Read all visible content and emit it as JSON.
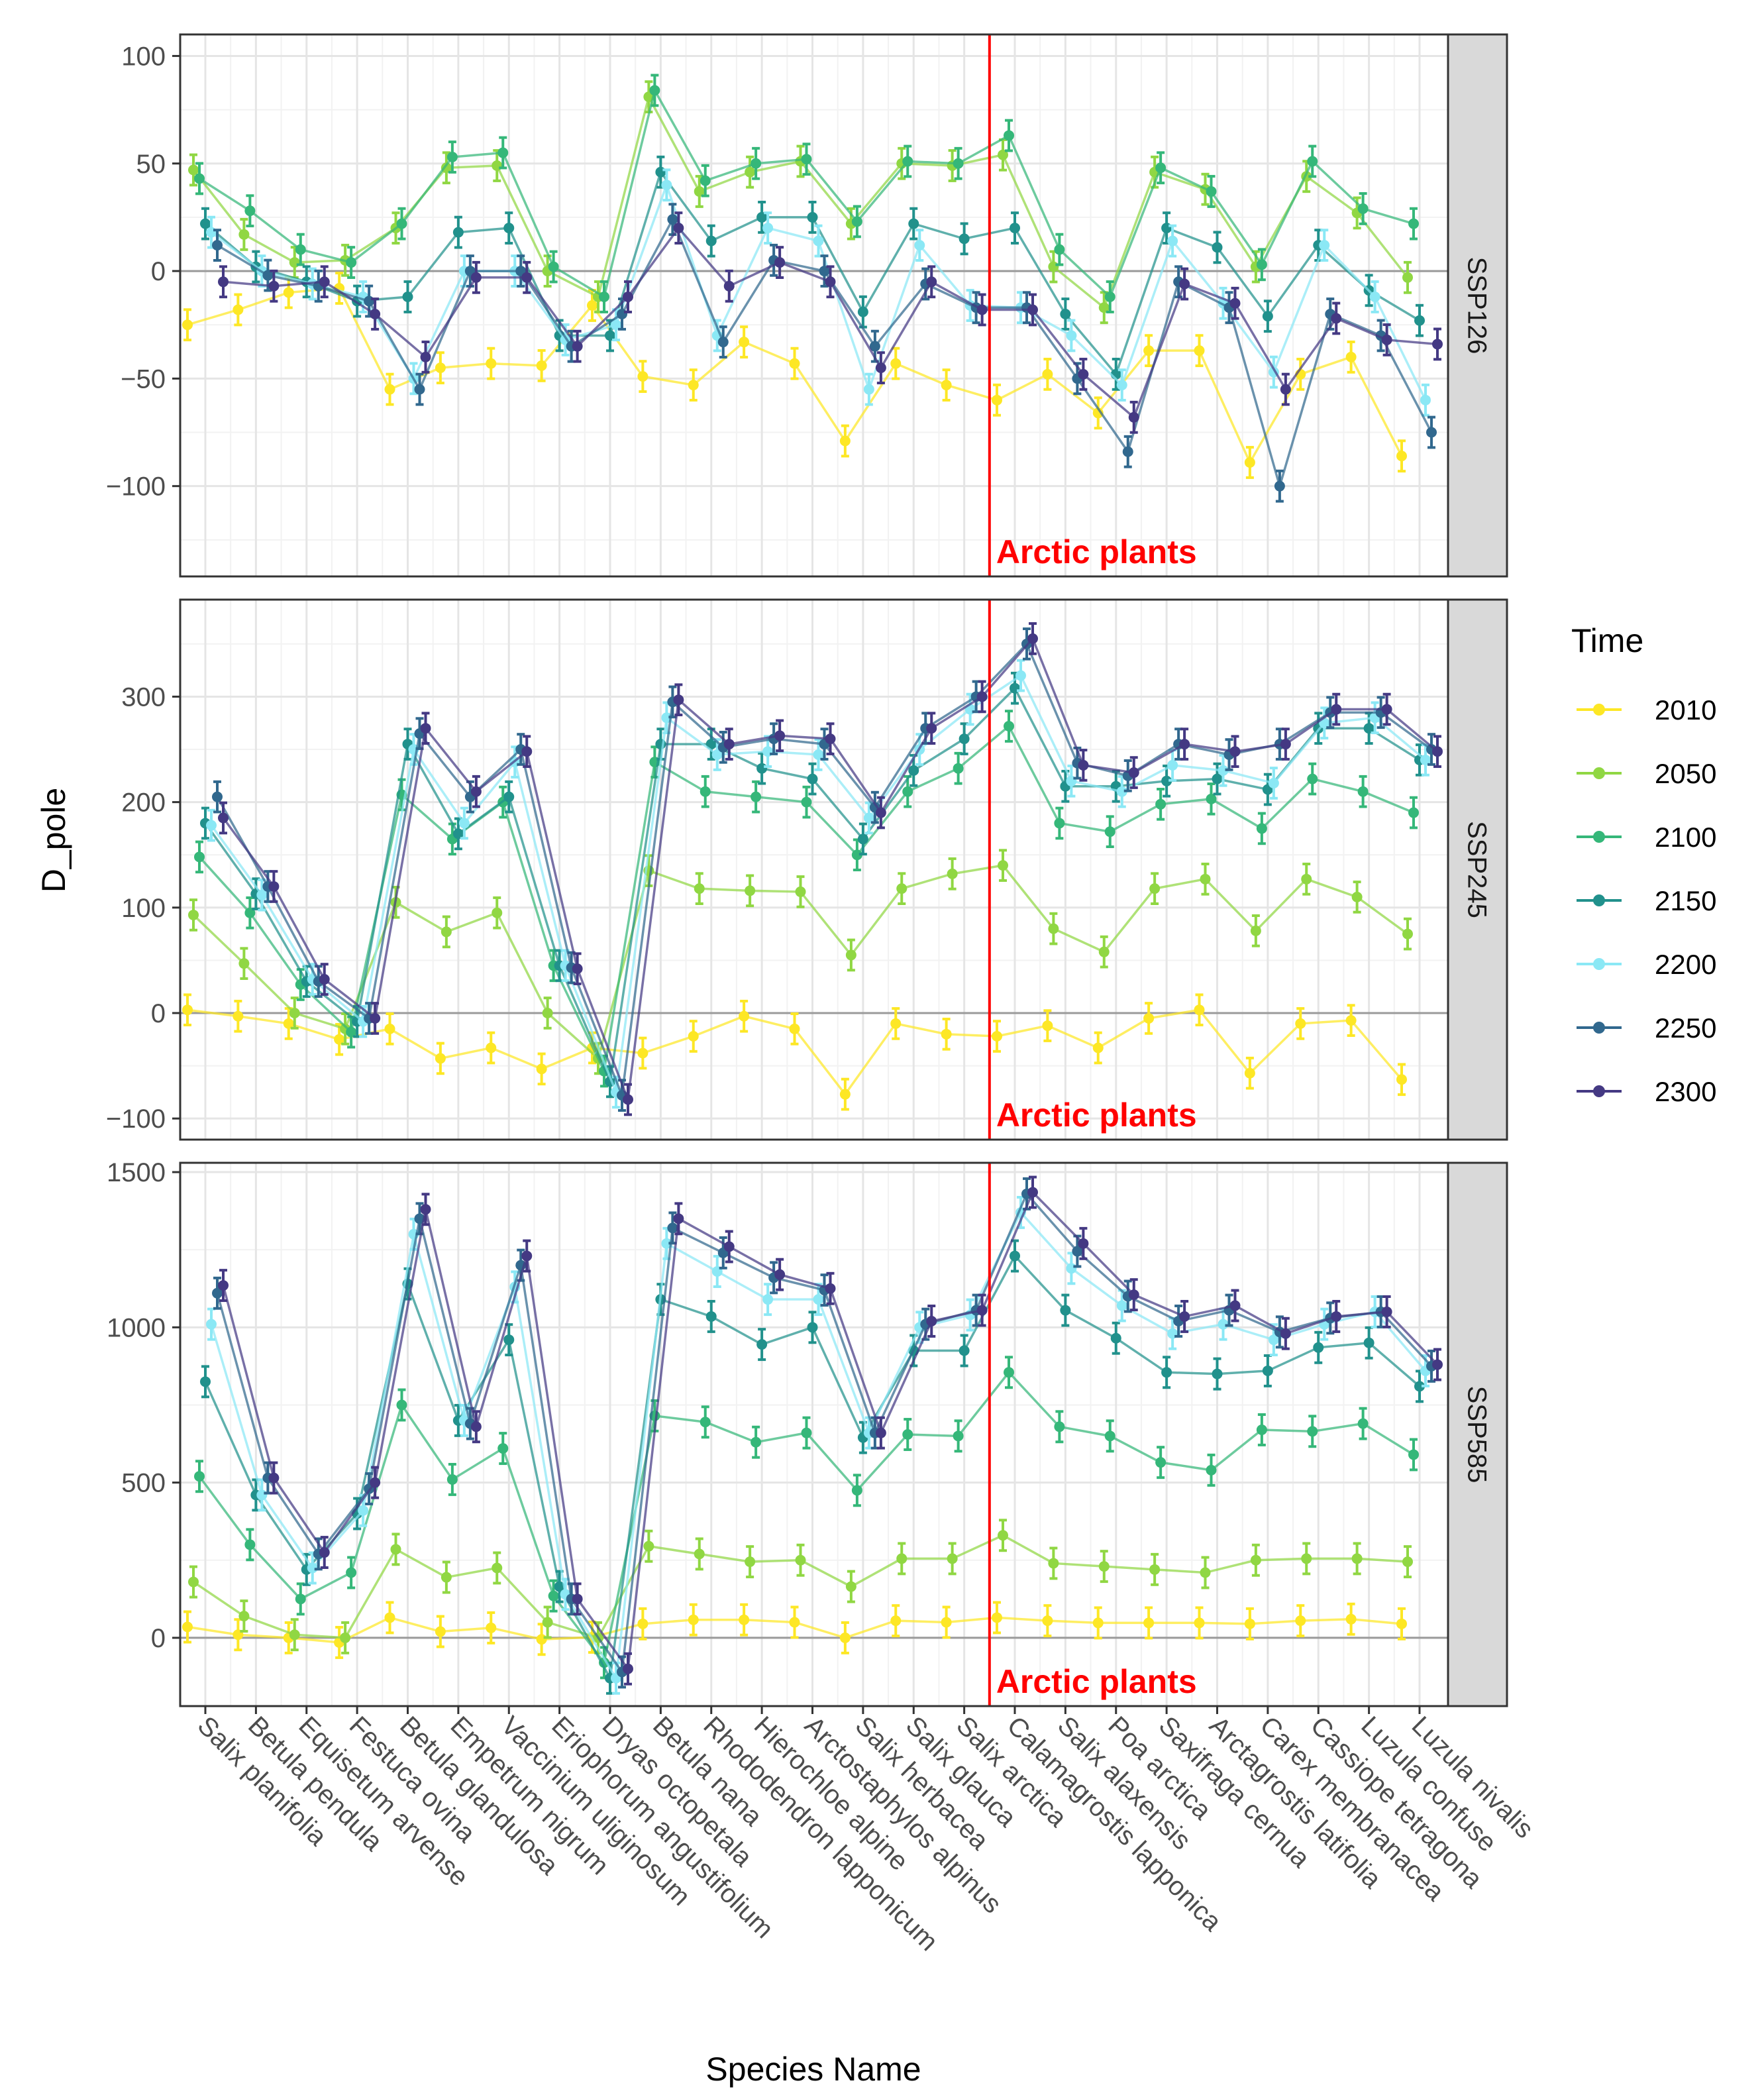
{
  "chart_data": {
    "type": "line",
    "xlabel": "Species Name",
    "ylabel": "D_pole",
    "legend_title": "Time",
    "annotation": "Arctic plants",
    "annotation_color": "#ff0000",
    "divider_after_category": "Salix arctica",
    "legend_position": "right",
    "categories": [
      "Salix planifolia",
      "Betula pendula",
      "Equisetum arvense",
      "Festuca ovina",
      "Betula glandulosa",
      "Empetrum nigrum",
      "Vaccinium uliginosum",
      "Eriophorum angustifolium",
      "Dryas octopetala",
      "Betula nana",
      "Rhododendron lapponicum",
      "Hierochloe alpine",
      "Arctostaphylos alpinus",
      "Salix herbacea",
      "Salix glauca",
      "Salix arctica",
      "Calamagrostis lapponica",
      "Salix alaxensis",
      "Poa arctica",
      "Saxifraga cernua",
      "Arctagrostis latifolia",
      "Carex membranacea",
      "Cassiope tetragona",
      "Luzula confuse",
      "Luzula nivalis"
    ],
    "series_names": [
      "2010",
      "2050",
      "2100",
      "2150",
      "2200",
      "2250",
      "2300"
    ],
    "series_colors": [
      "#fde725",
      "#90d743",
      "#35b779",
      "#21918c",
      "#8be8f5",
      "#31688e",
      "#443983"
    ],
    "panels": [
      {
        "label": "SSP126",
        "ylim": [
          -142,
          110
        ],
        "yticks": [
          -100,
          -50,
          0,
          50,
          100
        ],
        "series": [
          {
            "name": "2010",
            "values": [
              -25,
              -18,
              -10,
              -8,
              -55,
              -45,
              -43,
              -44,
              -16,
              -49,
              -53,
              -33,
              -43,
              -79,
              -43,
              -53,
              -60,
              -48,
              -66,
              -37,
              -37,
              -89,
              -48,
              -40,
              -86
            ]
          },
          {
            "name": "2050",
            "values": [
              47,
              17,
              4,
              5,
              20,
              48,
              49,
              0,
              -12,
              81,
              37,
              46,
              51,
              22,
              50,
              49,
              54,
              2,
              -17,
              46,
              38,
              2,
              44,
              27,
              -3
            ]
          },
          {
            "name": "2100",
            "values": [
              43,
              28,
              10,
              4,
              22,
              53,
              55,
              2,
              -12,
              84,
              42,
              50,
              52,
              23,
              51,
              50,
              63,
              10,
              -12,
              48,
              37,
              3,
              51,
              29,
              22
            ]
          },
          {
            "name": "2150",
            "values": [
              22,
              2,
              -5,
              -14,
              -12,
              18,
              20,
              -30,
              -30,
              46,
              14,
              25,
              25,
              -19,
              22,
              15,
              20,
              -20,
              -48,
              20,
              11,
              -21,
              12,
              -9,
              -23
            ]
          },
          {
            "name": "2200",
            "values": [
              18,
              0,
              -6,
              -12,
              -50,
              0,
              0,
              -32,
              -25,
              40,
              -30,
              20,
              14,
              -55,
              12,
              -16,
              -17,
              -30,
              -53,
              14,
              -15,
              -47,
              12,
              -12,
              -60
            ]
          },
          {
            "name": "2250",
            "values": [
              12,
              -2,
              -7,
              -14,
              -55,
              0,
              0,
              -35,
              -20,
              24,
              -33,
              5,
              0,
              -35,
              -6,
              -17,
              -17,
              -50,
              -84,
              -5,
              -17,
              -100,
              -20,
              -30,
              -75
            ]
          },
          {
            "name": "2300",
            "values": [
              -5,
              -7,
              -5,
              -20,
              -40,
              -3,
              -3,
              -35,
              -12,
              20,
              -7,
              4,
              -5,
              -45,
              -5,
              -18,
              -18,
              -48,
              -68,
              -6,
              -15,
              -55,
              -22,
              -32,
              -34
            ]
          }
        ]
      },
      {
        "label": "SSP245",
        "ylim": [
          -120,
          392
        ],
        "yticks": [
          -100,
          0,
          100,
          200,
          300
        ],
        "series": [
          {
            "name": "2010",
            "values": [
              3,
              -3,
              -10,
              -25,
              -15,
              -43,
              -33,
              -53,
              -33,
              -38,
              -22,
              -3,
              -15,
              -77,
              -10,
              -20,
              -22,
              -12,
              -33,
              -5,
              3,
              -57,
              -10,
              -7,
              -63
            ]
          },
          {
            "name": "2050",
            "values": [
              93,
              47,
              0,
              -15,
              105,
              77,
              95,
              0,
              -43,
              135,
              118,
              116,
              115,
              55,
              118,
              132,
              140,
              80,
              58,
              118,
              127,
              78,
              127,
              110,
              75
            ]
          },
          {
            "name": "2100",
            "values": [
              148,
              95,
              27,
              -18,
              207,
              165,
              200,
              45,
              -55,
              238,
              210,
              205,
              200,
              150,
              210,
              232,
              272,
              180,
              172,
              198,
              203,
              175,
              222,
              210,
              190
            ]
          },
          {
            "name": "2150",
            "values": [
              180,
              113,
              30,
              -8,
              255,
              170,
              205,
              45,
              -65,
              255,
              255,
              232,
              222,
              165,
              230,
              260,
              308,
              215,
              215,
              220,
              222,
              212,
              270,
              270,
              240
            ]
          },
          {
            "name": "2200",
            "values": [
              178,
              112,
              32,
              -8,
              250,
              180,
              238,
              45,
              -75,
              280,
              245,
              248,
              245,
              185,
              250,
              288,
              320,
              220,
              210,
              235,
              230,
              218,
              275,
              280,
              240
            ]
          },
          {
            "name": "2250",
            "values": [
              205,
              120,
              30,
              -5,
              265,
              205,
              250,
              43,
              -78,
              295,
              252,
              260,
              255,
              195,
              270,
              300,
              350,
              237,
              225,
              255,
              245,
              255,
              285,
              285,
              250
            ]
          },
          {
            "name": "2300",
            "values": [
              185,
              120,
              32,
              -5,
              270,
              210,
              248,
              42,
              -82,
              297,
              255,
              263,
              260,
              190,
              270,
              300,
              355,
              235,
              228,
              255,
              248,
              255,
              288,
              288,
              248
            ]
          }
        ]
      },
      {
        "label": "SSP585",
        "ylim": [
          -220,
          1530
        ],
        "yticks": [
          0,
          500,
          1000,
          1500
        ],
        "series": [
          {
            "name": "2010",
            "values": [
              35,
              10,
              0,
              -15,
              65,
              20,
              32,
              -5,
              2,
              45,
              58,
              58,
              50,
              0,
              55,
              50,
              65,
              55,
              48,
              48,
              48,
              45,
              55,
              60,
              45
            ]
          },
          {
            "name": "2050",
            "values": [
              180,
              70,
              10,
              0,
              285,
              195,
              225,
              50,
              0,
              295,
              270,
              245,
              250,
              165,
              255,
              255,
              330,
              240,
              230,
              220,
              210,
              250,
              255,
              255,
              245
            ]
          },
          {
            "name": "2100",
            "values": [
              520,
              300,
              125,
              210,
              750,
              510,
              610,
              135,
              -80,
              715,
              695,
              630,
              660,
              475,
              655,
              650,
              855,
              680,
              650,
              565,
              540,
              670,
              665,
              690,
              590
            ]
          },
          {
            "name": "2150",
            "values": [
              825,
              460,
              220,
              400,
              1140,
              700,
              960,
              165,
              -130,
              1090,
              1035,
              945,
              1000,
              645,
              925,
              925,
              1230,
              1055,
              965,
              855,
              850,
              860,
              935,
              950,
              810
            ]
          },
          {
            "name": "2200",
            "values": [
              1010,
              460,
              225,
              410,
              1300,
              700,
              1130,
              140,
              -130,
              1270,
              1180,
              1090,
              1090,
              660,
              1000,
              1040,
              1370,
              1190,
              1070,
              980,
              1010,
              960,
              1010,
              1050,
              860
            ]
          },
          {
            "name": "2250",
            "values": [
              1110,
              515,
              270,
              480,
              1350,
              690,
              1200,
              125,
              -110,
              1320,
              1240,
              1160,
              1120,
              660,
              1010,
              1055,
              1430,
              1245,
              1100,
              1020,
              1055,
              985,
              1030,
              1050,
              875
            ]
          },
          {
            "name": "2300",
            "values": [
              1135,
              515,
              275,
              500,
              1380,
              680,
              1230,
              125,
              -100,
              1350,
              1260,
              1170,
              1125,
              660,
              1020,
              1055,
              1435,
              1270,
              1105,
              1035,
              1070,
              980,
              1035,
              1050,
              880
            ]
          }
        ]
      }
    ]
  }
}
